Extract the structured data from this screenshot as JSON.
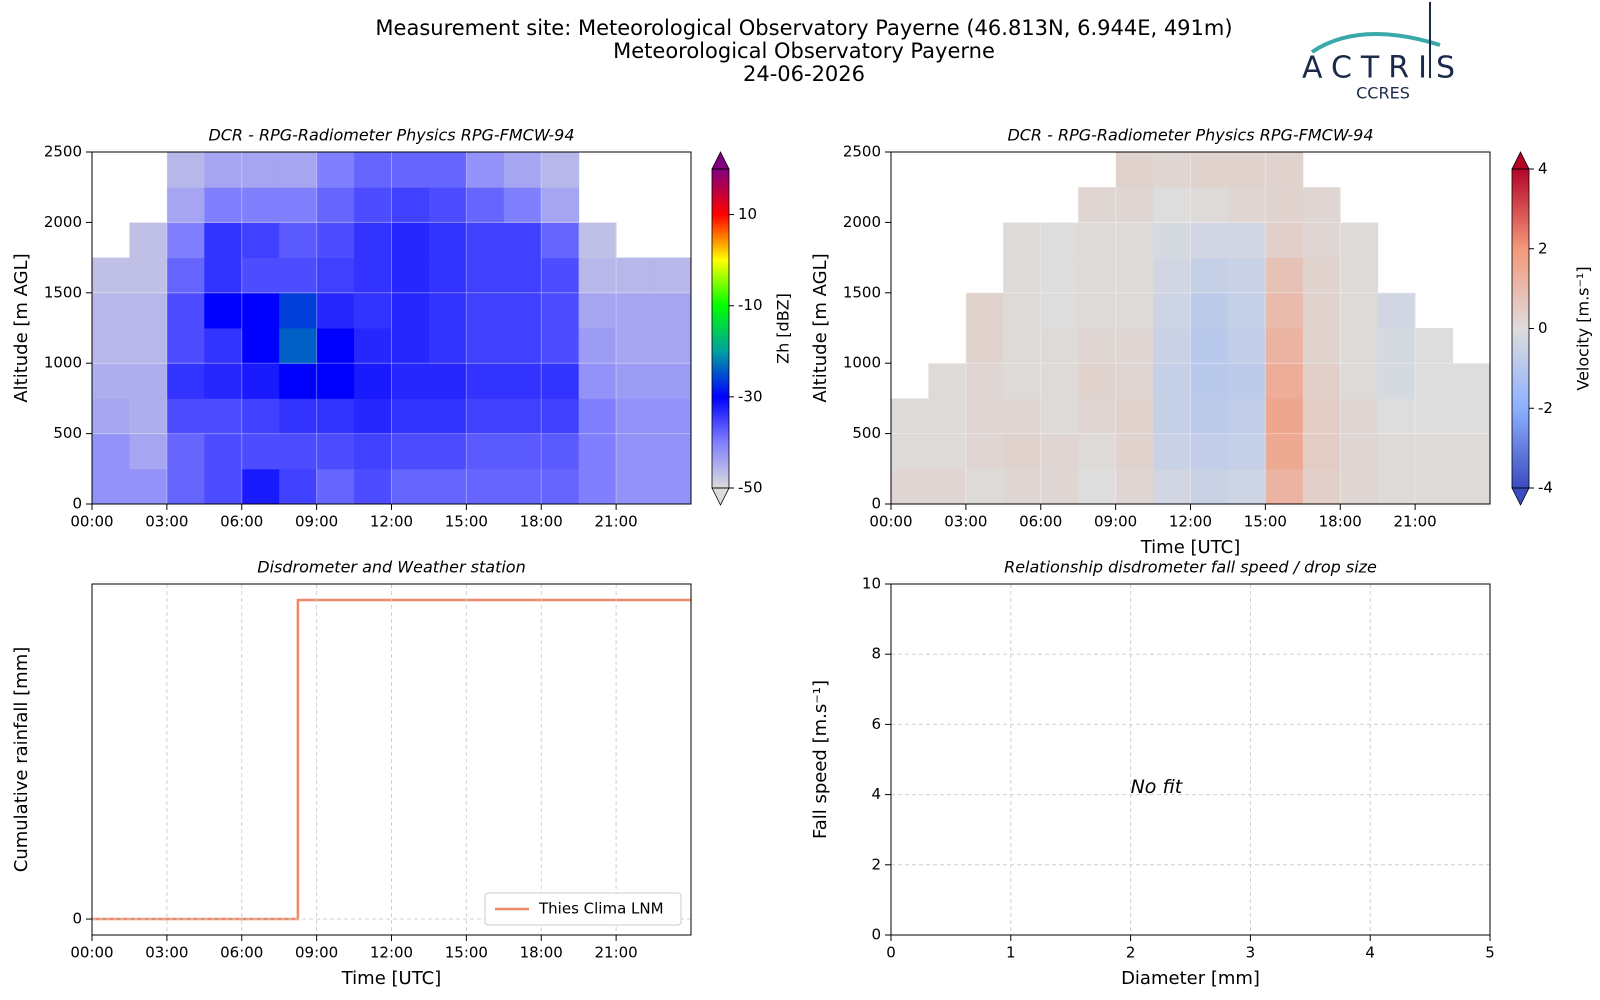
{
  "header": {
    "title_lines": [
      "Measurement site: Meteorological Observatory Payerne (46.813N, 6.944E, 491m)",
      "Meteorological Observatory Payerne",
      "24-06-2026"
    ],
    "logo_text": "ACTRIS",
    "logo_subtext": "CCRES"
  },
  "chart_data": [
    {
      "type": "heatmap",
      "title": "DCR - RPG-Radiometer Physics RPG-FMCW-94",
      "ylabel": "Altitude [m AGL]",
      "colorbar_label": "Zh [dBZ]",
      "xlim": [
        0,
        24
      ],
      "xticks": [
        {
          "value": 0,
          "label": "00:00"
        },
        {
          "value": 3,
          "label": "03:00"
        },
        {
          "value": 6,
          "label": "06:00"
        },
        {
          "value": 9,
          "label": "09:00"
        },
        {
          "value": 12,
          "label": "12:00"
        },
        {
          "value": 15,
          "label": "15:00"
        },
        {
          "value": 18,
          "label": "18:00"
        },
        {
          "value": 21,
          "label": "21:00"
        }
      ],
      "ylim": [
        0,
        2500
      ],
      "yticks": [
        0,
        500,
        1000,
        1500,
        2000,
        2500
      ],
      "grid": true,
      "x": [
        0.75,
        2.25,
        3.75,
        5.25,
        6.75,
        8.25,
        9.75,
        11.25,
        12.75,
        14.25,
        15.75,
        17.25,
        18.75,
        20.25,
        21.75,
        23.25
      ],
      "y": [
        125,
        375,
        625,
        875,
        1125,
        1375,
        1625,
        1875,
        2125,
        2375
      ],
      "z": [
        [
          -42,
          -42,
          -38,
          -36,
          -32,
          -35,
          -38,
          -36,
          -38,
          -38,
          -38,
          -38,
          -38,
          -40,
          -42,
          -42
        ],
        [
          -42,
          -44,
          -38,
          -36,
          -36,
          -36,
          -36,
          -35,
          -36,
          -36,
          -37,
          -37,
          -37,
          -40,
          -42,
          -42
        ],
        [
          -44,
          -45,
          -36,
          -36,
          -35,
          -34,
          -34,
          -33,
          -34,
          -34,
          -35,
          -35,
          -35,
          -40,
          -42,
          -42
        ],
        [
          -45,
          -45,
          -34,
          -33,
          -32,
          -30,
          -30,
          -32,
          -33,
          -33,
          -34,
          -34,
          -34,
          -42,
          -43,
          -43
        ],
        [
          -46,
          -46,
          -36,
          -34,
          -30,
          -24,
          -30,
          -33,
          -33,
          -34,
          -35,
          -35,
          -36,
          -43,
          -44,
          -44
        ],
        [
          -46,
          -46,
          -36,
          -30,
          -30,
          -26,
          -33,
          -34,
          -33,
          -34,
          -35,
          -35,
          -36,
          -44,
          -44,
          -44
        ],
        [
          -47,
          -47,
          -38,
          -34,
          -36,
          -36,
          -35,
          -34,
          -33,
          -34,
          -35,
          -35,
          -36,
          -46,
          -46,
          -46
        ],
        [
          null,
          -47,
          -40,
          -34,
          -35,
          -37,
          -36,
          -34,
          -33,
          -34,
          -35,
          -35,
          -38,
          -47,
          null,
          null
        ],
        [
          null,
          null,
          -44,
          -40,
          -40,
          -40,
          -38,
          -36,
          -35,
          -36,
          -38,
          -40,
          -44,
          null,
          null,
          null
        ],
        [
          null,
          null,
          -46,
          -44,
          -44,
          -44,
          -40,
          -38,
          -38,
          -38,
          -42,
          -44,
          -46,
          null,
          null,
          null
        ]
      ],
      "clim": [
        -50,
        20
      ],
      "cticks": [
        -50,
        -30,
        -10,
        10
      ],
      "colorscale": [
        "#dcdcdc",
        "#8080ff",
        "#0000ff",
        "#00a0a0",
        "#00ff00",
        "#ffff00",
        "#ff0000",
        "#800080"
      ]
    },
    {
      "type": "heatmap",
      "title": "DCR - RPG-Radiometer Physics RPG-FMCW-94",
      "xlabel": "Time [UTC]",
      "ylabel": "Altitude [m AGL]",
      "colorbar_label": "Velocity [m.s⁻¹]",
      "xlim": [
        0,
        24
      ],
      "xticks": [
        {
          "value": 0,
          "label": "00:00"
        },
        {
          "value": 3,
          "label": "03:00"
        },
        {
          "value": 6,
          "label": "06:00"
        },
        {
          "value": 9,
          "label": "09:00"
        },
        {
          "value": 12,
          "label": "12:00"
        },
        {
          "value": 15,
          "label": "15:00"
        },
        {
          "value": 18,
          "label": "18:00"
        },
        {
          "value": 21,
          "label": "21:00"
        }
      ],
      "ylim": [
        0,
        2500
      ],
      "yticks": [
        0,
        500,
        1000,
        1500,
        2000,
        2500
      ],
      "grid": true,
      "x": [
        0.75,
        2.25,
        3.75,
        5.25,
        6.75,
        8.25,
        9.75,
        11.25,
        12.75,
        14.25,
        15.75,
        17.25,
        18.75,
        20.25,
        21.75,
        23.25
      ],
      "y": [
        125,
        375,
        625,
        875,
        1125,
        1375,
        1625,
        1875,
        2125,
        2375
      ],
      "z": [
        [
          0.2,
          0.2,
          0.1,
          0.2,
          0.2,
          0,
          0.2,
          -0.3,
          -0.5,
          -0.4,
          1.2,
          0.4,
          0.2,
          0.1,
          0.1,
          0.1
        ],
        [
          0.1,
          0.1,
          0.2,
          0.3,
          0.2,
          0.1,
          0.3,
          -0.5,
          -0.7,
          -0.6,
          1.5,
          0.5,
          0.2,
          0.1,
          0.1,
          0.1
        ],
        [
          0.1,
          0.1,
          0.2,
          0.2,
          0.1,
          0.2,
          0.3,
          -0.6,
          -0.8,
          -0.7,
          1.6,
          0.5,
          0.2,
          0,
          0,
          0
        ],
        [
          null,
          0.1,
          0.2,
          0.1,
          0.1,
          0.3,
          0.2,
          -0.6,
          -0.9,
          -0.8,
          1.4,
          0.4,
          0.1,
          -0.2,
          0,
          0
        ],
        [
          null,
          null,
          0.3,
          0.1,
          0.1,
          0.2,
          0.2,
          -0.5,
          -0.9,
          -0.7,
          1.2,
          0.3,
          0.1,
          -0.2,
          0,
          null
        ],
        [
          null,
          null,
          0.3,
          0.1,
          0,
          0.1,
          0.1,
          -0.4,
          -0.8,
          -0.6,
          1.0,
          0.3,
          0.1,
          -0.3,
          null,
          null
        ],
        [
          null,
          null,
          null,
          0.1,
          0,
          0.1,
          0.1,
          -0.3,
          -0.6,
          -0.5,
          0.8,
          0.3,
          0.1,
          null,
          null,
          null
        ],
        [
          null,
          null,
          null,
          0.1,
          0,
          0.1,
          0.1,
          -0.2,
          -0.3,
          -0.3,
          0.4,
          0.2,
          0.1,
          null,
          null,
          null
        ],
        [
          null,
          null,
          null,
          null,
          null,
          0.2,
          0.2,
          0,
          0.1,
          0.2,
          0.3,
          0.2,
          null,
          null,
          null,
          null
        ],
        [
          null,
          null,
          null,
          null,
          null,
          null,
          0.3,
          0.2,
          0.3,
          0.3,
          0.3,
          null,
          null,
          null,
          null,
          null
        ]
      ],
      "clim": [
        -4,
        4
      ],
      "cticks": [
        -4,
        -2,
        0,
        2,
        4
      ],
      "colorscale": [
        "#3b4cc0",
        "#8db0fe",
        "#dddddd",
        "#f4987a",
        "#b40426"
      ]
    },
    {
      "type": "line",
      "title": "Disdrometer and Weather station",
      "xlabel": "Time [UTC]",
      "ylabel": "Cumulative rainfall [mm]",
      "xlim": [
        0,
        24
      ],
      "xticks": [
        {
          "value": 0,
          "label": "00:00"
        },
        {
          "value": 3,
          "label": "03:00"
        },
        {
          "value": 6,
          "label": "06:00"
        },
        {
          "value": 9,
          "label": "09:00"
        },
        {
          "value": 12,
          "label": "12:00"
        },
        {
          "value": 15,
          "label": "15:00"
        },
        {
          "value": 18,
          "label": "18:00"
        },
        {
          "value": 21,
          "label": "21:00"
        }
      ],
      "ylim": [
        -0.05,
        1.05
      ],
      "yticks": [
        0
      ],
      "grid": true,
      "legend": "lower right",
      "x": [
        0,
        8.25,
        8.25,
        24
      ],
      "series": [
        {
          "name": "Thies Clima LNM",
          "color": "#ee8866",
          "values": [
            0,
            0,
            1,
            1
          ]
        }
      ]
    },
    {
      "type": "scatter",
      "title": "Relationship disdrometer fall speed / drop size",
      "xlabel": "Diameter [mm]",
      "ylabel": "Fall speed [m.s⁻¹]",
      "xlim": [
        0,
        5
      ],
      "xticks": [
        0,
        1,
        2,
        3,
        4,
        5
      ],
      "ylim": [
        0,
        10
      ],
      "yticks": [
        0,
        2,
        4,
        6,
        8,
        10
      ],
      "grid": true,
      "annotation": "No fit"
    }
  ]
}
